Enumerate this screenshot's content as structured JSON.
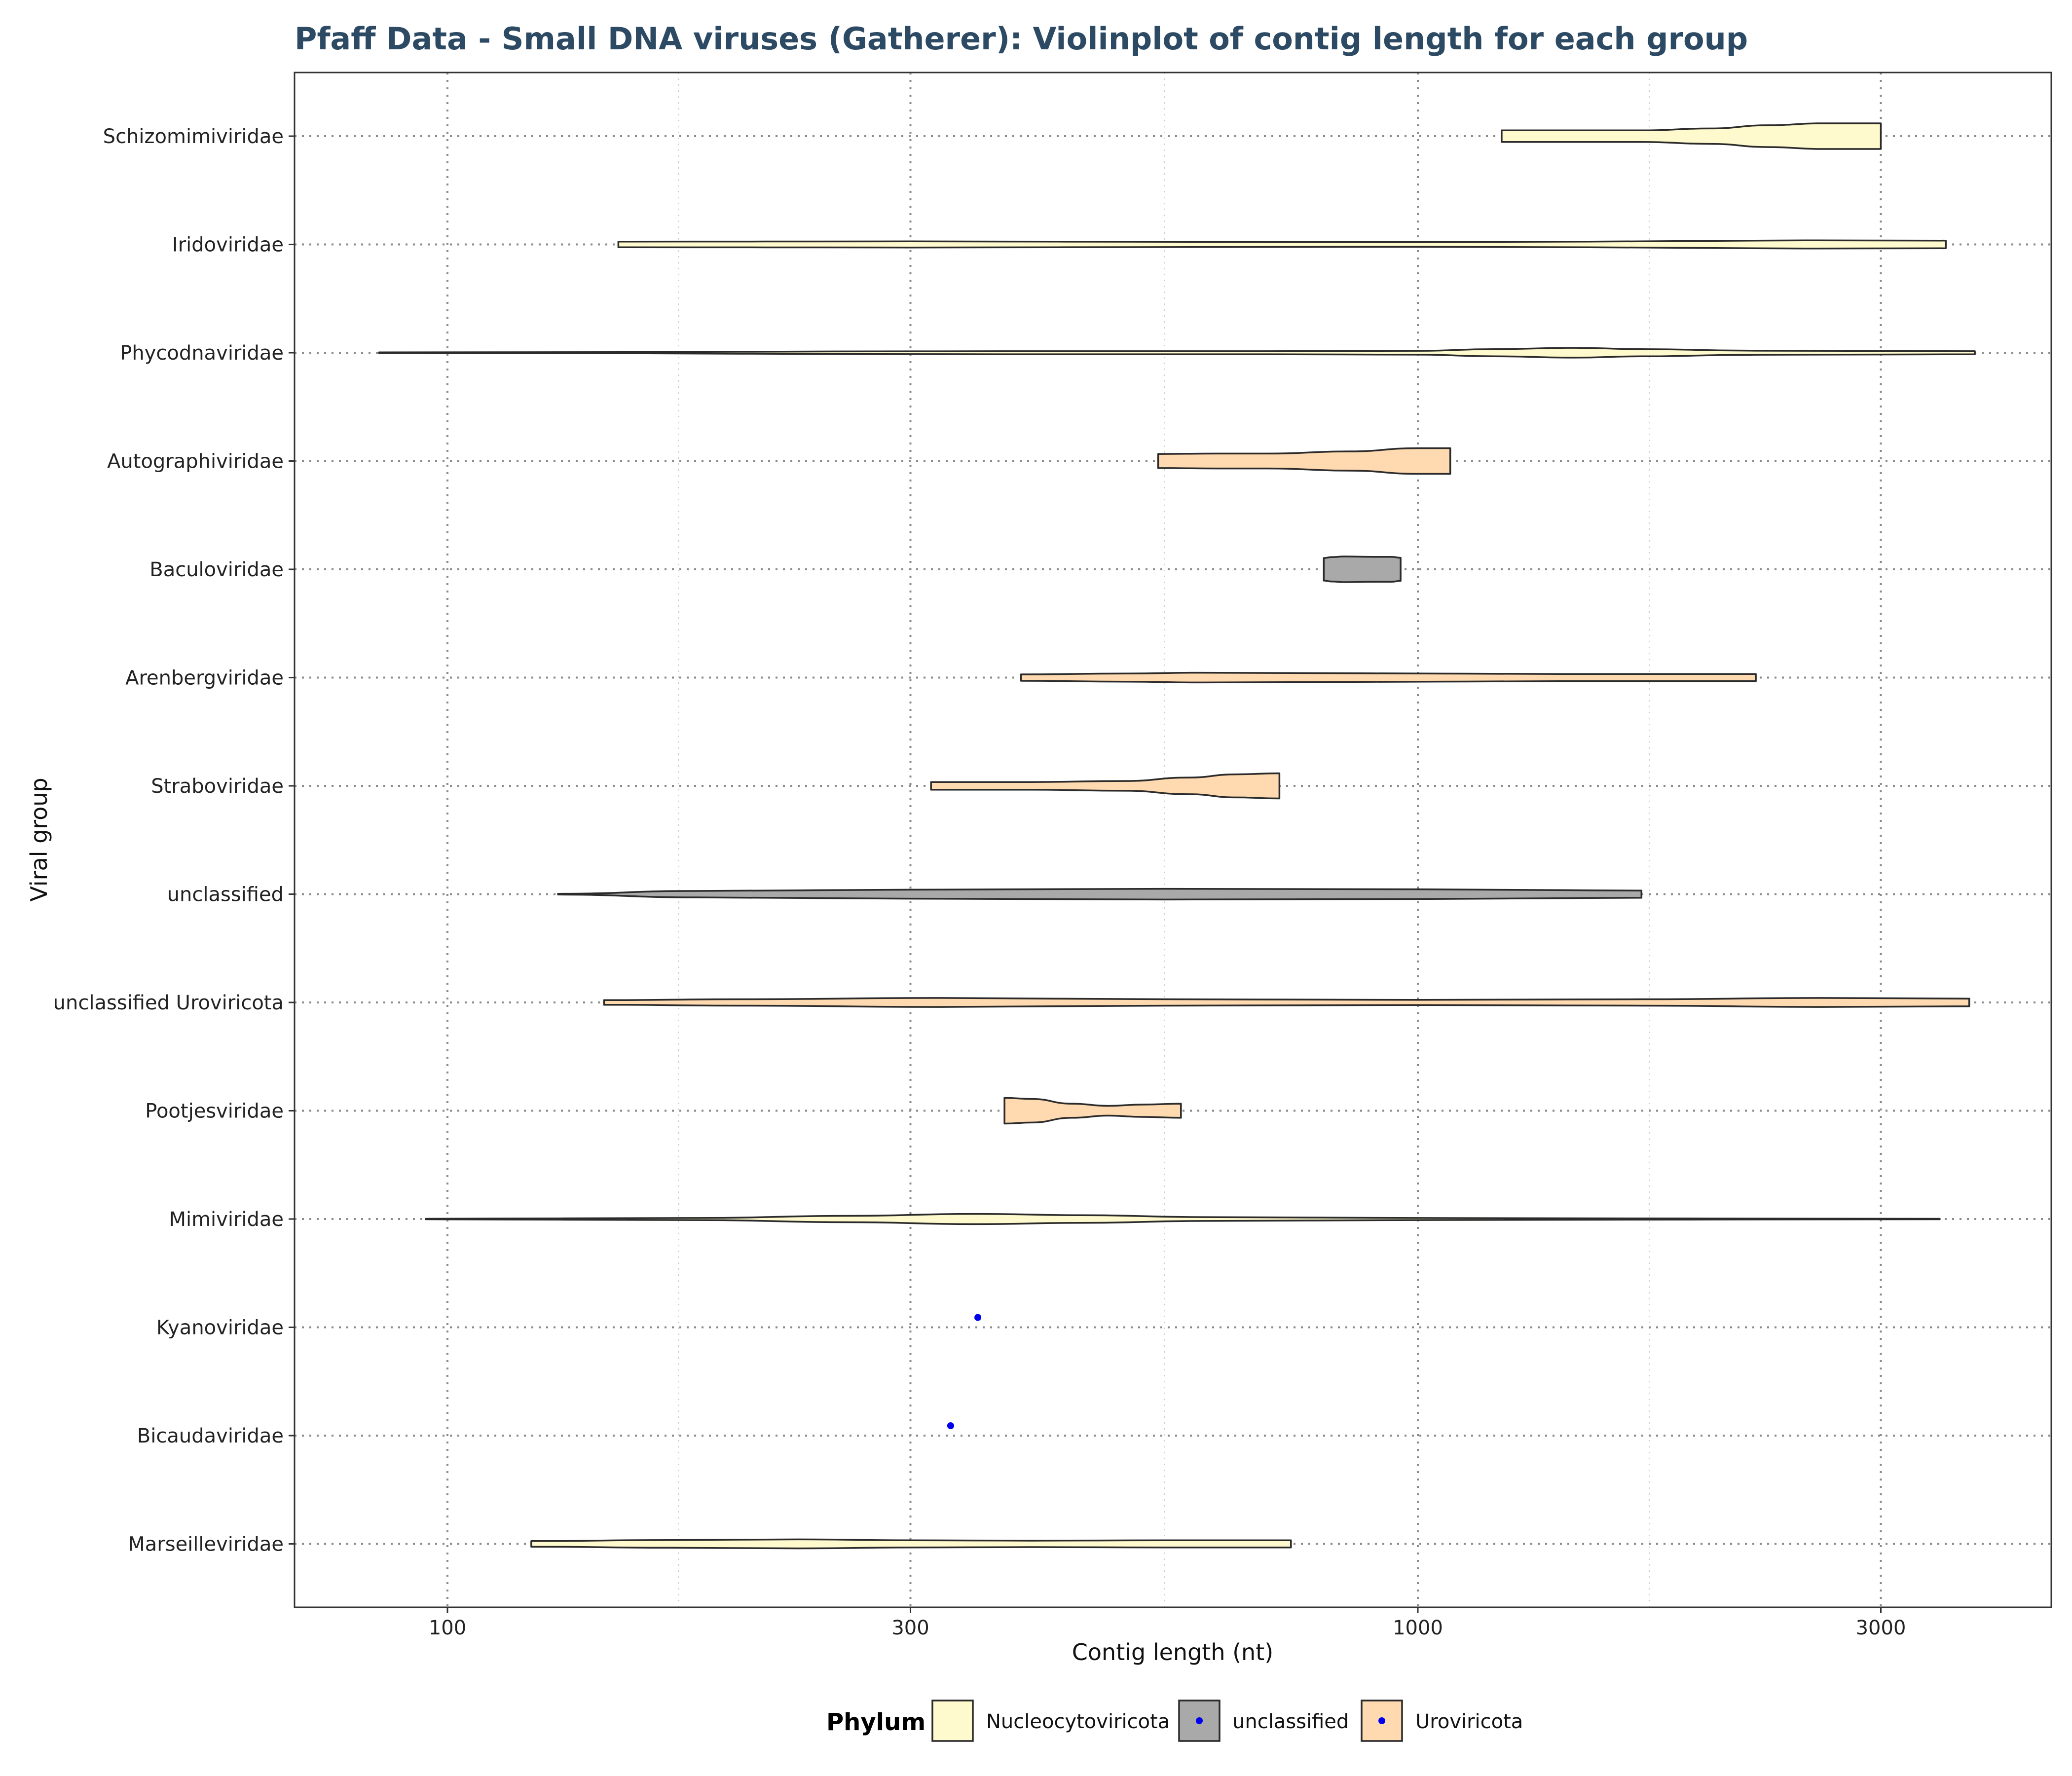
{
  "chart_data": {
    "type": "violin",
    "title": "Pfaff Data - Small DNA viruses (Gatherer): Violinplot of contig length for each group",
    "xlabel": "Contig length (nt)",
    "ylabel": "Viral group",
    "x_scale": "log10",
    "xlim": [
      70,
      4200
    ],
    "x_ticks": [
      {
        "value": 100,
        "label": "100"
      },
      {
        "value": 300,
        "label": "300"
      },
      {
        "value": 1000,
        "label": "1000"
      },
      {
        "value": 3000,
        "label": "3000"
      }
    ],
    "x_minor_ticks": [
      173,
      548,
      1732
    ],
    "grid": true,
    "legend": {
      "title": "Phylum",
      "placement": "bottom",
      "entries": [
        {
          "label": "Nucleocytoviricota",
          "color": "#fffacd",
          "kind": "fill"
        },
        {
          "label": "unclassified",
          "color": "#a9a9a9",
          "kind": "fill-dot"
        },
        {
          "label": "Uroviricota",
          "color": "#ffdab0",
          "kind": "fill-dot"
        }
      ]
    },
    "outlier_color": "#0000ee",
    "groups": [
      {
        "name": "Schizomimiviridae",
        "phylum": "Nucleocytoviricota",
        "color": "#fffacd",
        "min": 1220,
        "max": 3000,
        "density": [
          [
            1220,
            0.45
          ],
          [
            1400,
            0.45
          ],
          [
            1700,
            0.45
          ],
          [
            2000,
            0.6
          ],
          [
            2300,
            0.85
          ],
          [
            2600,
            1.0
          ],
          [
            3000,
            1.0
          ]
        ]
      },
      {
        "name": "Iridoviridae",
        "phylum": "Nucleocytoviricota",
        "color": "#fffacd",
        "min": 150,
        "max": 3500,
        "density": [
          [
            150,
            0.22
          ],
          [
            300,
            0.24
          ],
          [
            600,
            0.2
          ],
          [
            1000,
            0.18
          ],
          [
            1500,
            0.22
          ],
          [
            2500,
            0.32
          ],
          [
            3500,
            0.3
          ]
        ]
      },
      {
        "name": "Phycodnaviridae",
        "phylum": "Nucleocytoviricota",
        "color": "#fffacd",
        "min": 85,
        "max": 3750,
        "density": [
          [
            85,
            0.03
          ],
          [
            160,
            0.05
          ],
          [
            250,
            0.1
          ],
          [
            380,
            0.12
          ],
          [
            700,
            0.12
          ],
          [
            1000,
            0.15
          ],
          [
            1200,
            0.28
          ],
          [
            1450,
            0.38
          ],
          [
            1700,
            0.28
          ],
          [
            2200,
            0.16
          ],
          [
            3000,
            0.14
          ],
          [
            3750,
            0.12
          ]
        ]
      },
      {
        "name": "Autographiviridae",
        "phylum": "Uroviricota",
        "color": "#ffdab0",
        "min": 540,
        "max": 1080,
        "density": [
          [
            540,
            0.55
          ],
          [
            620,
            0.58
          ],
          [
            700,
            0.58
          ],
          [
            850,
            0.75
          ],
          [
            1000,
            1.0
          ],
          [
            1080,
            1.0
          ]
        ]
      },
      {
        "name": "Baculoviridae",
        "phylum": "unclassified",
        "color": "#a9a9a9",
        "min": 800,
        "max": 960,
        "density": [
          [
            800,
            0.88
          ],
          [
            815,
            0.95
          ],
          [
            840,
            1.0
          ],
          [
            900,
            0.97
          ],
          [
            940,
            0.97
          ],
          [
            960,
            0.9
          ]
        ]
      },
      {
        "name": "Arenbergviridae",
        "phylum": "Uroviricota",
        "color": "#ffdab0",
        "min": 390,
        "max": 2230,
        "density": [
          [
            390,
            0.25
          ],
          [
            500,
            0.32
          ],
          [
            600,
            0.38
          ],
          [
            900,
            0.33
          ],
          [
            1400,
            0.28
          ],
          [
            2230,
            0.28
          ]
        ]
      },
      {
        "name": "Straboviridae",
        "phylum": "Uroviricota",
        "color": "#ffdab0",
        "min": 315,
        "max": 720,
        "density": [
          [
            315,
            0.3
          ],
          [
            400,
            0.3
          ],
          [
            500,
            0.38
          ],
          [
            580,
            0.65
          ],
          [
            650,
            0.9
          ],
          [
            720,
            0.98
          ]
        ]
      },
      {
        "name": "unclassified",
        "phylum": "unclassified",
        "color": "#a9a9a9",
        "min": 130,
        "max": 1700,
        "density": [
          [
            130,
            0.03
          ],
          [
            180,
            0.25
          ],
          [
            300,
            0.35
          ],
          [
            550,
            0.42
          ],
          [
            1000,
            0.38
          ],
          [
            1500,
            0.3
          ],
          [
            1700,
            0.28
          ]
        ]
      },
      {
        "name": "unclassified Uroviricota",
        "phylum": "Uroviricota",
        "color": "#ffdab0",
        "min": 145,
        "max": 3700,
        "density": [
          [
            145,
            0.18
          ],
          [
            200,
            0.25
          ],
          [
            320,
            0.35
          ],
          [
            550,
            0.25
          ],
          [
            1000,
            0.2
          ],
          [
            1700,
            0.25
          ],
          [
            2600,
            0.35
          ],
          [
            3700,
            0.3
          ]
        ]
      },
      {
        "name": "Pootjesviridae",
        "phylum": "Uroviricota",
        "color": "#ffdab0",
        "min": 375,
        "max": 570,
        "density": [
          [
            375,
            1.0
          ],
          [
            400,
            0.92
          ],
          [
            440,
            0.55
          ],
          [
            480,
            0.38
          ],
          [
            520,
            0.48
          ],
          [
            570,
            0.55
          ]
        ]
      },
      {
        "name": "Mimiviridae",
        "phylum": "Nucleocytoviricota",
        "color": "#fffacd",
        "min": 95,
        "max": 3450,
        "density": [
          [
            95,
            0.02
          ],
          [
            180,
            0.08
          ],
          [
            260,
            0.25
          ],
          [
            350,
            0.4
          ],
          [
            450,
            0.3
          ],
          [
            600,
            0.15
          ],
          [
            1000,
            0.08
          ],
          [
            2000,
            0.04
          ],
          [
            3450,
            0.02
          ]
        ]
      },
      {
        "name": "Kyanoviridae",
        "phylum": "Uroviricota",
        "points": [
          352
        ]
      },
      {
        "name": "Bicaudaviridae",
        "phylum": "Uroviricota",
        "points": [
          330
        ]
      },
      {
        "name": "Marseilleviridae",
        "phylum": "Nucleocytoviricota",
        "color": "#fffacd",
        "min": 122,
        "max": 740,
        "density": [
          [
            122,
            0.22
          ],
          [
            170,
            0.3
          ],
          [
            230,
            0.35
          ],
          [
            300,
            0.28
          ],
          [
            400,
            0.25
          ],
          [
            550,
            0.28
          ],
          [
            740,
            0.28
          ]
        ]
      }
    ]
  }
}
